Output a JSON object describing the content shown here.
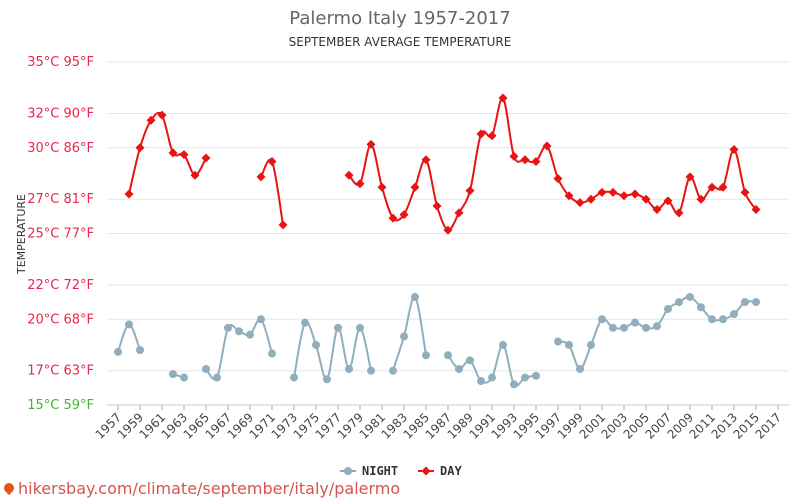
{
  "chart_data": {
    "type": "line",
    "title": "Palermo Italy 1957-2017",
    "subtitle": "SEPTEMBER AVERAGE TEMPERATURE",
    "ylabel": "TEMPERATURE",
    "ylim": [
      15,
      35
    ],
    "y_ticks": [
      {
        "value": 35,
        "label": "35°C 95°F",
        "color": "#e8264f"
      },
      {
        "value": 32,
        "label": "32°C 90°F",
        "color": "#e8264f"
      },
      {
        "value": 30,
        "label": "30°C 86°F",
        "color": "#e8264f"
      },
      {
        "value": 27,
        "label": "27°C 81°F",
        "color": "#e8264f"
      },
      {
        "value": 25,
        "label": "25°C 77°F",
        "color": "#e8264f"
      },
      {
        "value": 22,
        "label": "22°C 72°F",
        "color": "#e8264f"
      },
      {
        "value": 20,
        "label": "20°C 68°F",
        "color": "#e8264f"
      },
      {
        "value": 17,
        "label": "17°C 63°F",
        "color": "#e8264f"
      },
      {
        "value": 15,
        "label": "15°C 59°F",
        "color": "#4caf3c"
      }
    ],
    "x_tick_labels": [
      "1957",
      "1959",
      "1961",
      "1963",
      "1965",
      "1967",
      "1969",
      "1971",
      "1973",
      "1975",
      "1977",
      "1979",
      "1981",
      "1983",
      "1985",
      "1987",
      "1989",
      "1991",
      "1993",
      "1995",
      "1997",
      "1999",
      "2001",
      "2003",
      "2005",
      "2007",
      "2009",
      "2011",
      "2013",
      "2015",
      "2017"
    ],
    "grid": true,
    "legend_position": "bottom-center",
    "series": [
      {
        "name": "NIGHT",
        "color": "#90aebb",
        "marker": "circle",
        "points": [
          {
            "x": 1957,
            "y": 18.1
          },
          {
            "x": 1958,
            "y": 19.7
          },
          {
            "x": 1959,
            "y": 18.2
          },
          {
            "x": 1962,
            "y": 16.8
          },
          {
            "x": 1963,
            "y": 16.6
          },
          {
            "x": 1965,
            "y": 17.1
          },
          {
            "x": 1966,
            "y": 16.6
          },
          {
            "x": 1967,
            "y": 19.5
          },
          {
            "x": 1968,
            "y": 19.3
          },
          {
            "x": 1969,
            "y": 19.1
          },
          {
            "x": 1970,
            "y": 20.0
          },
          {
            "x": 1971,
            "y": 18.0
          },
          {
            "x": 1973,
            "y": 16.6
          },
          {
            "x": 1974,
            "y": 19.8
          },
          {
            "x": 1975,
            "y": 18.5
          },
          {
            "x": 1976,
            "y": 16.5
          },
          {
            "x": 1977,
            "y": 19.5
          },
          {
            "x": 1978,
            "y": 17.1
          },
          {
            "x": 1979,
            "y": 19.5
          },
          {
            "x": 1980,
            "y": 17.0
          },
          {
            "x": 1982,
            "y": 17.0
          },
          {
            "x": 1983,
            "y": 19.0
          },
          {
            "x": 1984,
            "y": 21.3
          },
          {
            "x": 1985,
            "y": 17.9
          },
          {
            "x": 1987,
            "y": 17.9
          },
          {
            "x": 1988,
            "y": 17.1
          },
          {
            "x": 1989,
            "y": 17.6
          },
          {
            "x": 1990,
            "y": 16.4
          },
          {
            "x": 1991,
            "y": 16.6
          },
          {
            "x": 1992,
            "y": 18.5
          },
          {
            "x": 1993,
            "y": 16.2
          },
          {
            "x": 1994,
            "y": 16.6
          },
          {
            "x": 1995,
            "y": 16.7
          },
          {
            "x": 1997,
            "y": 18.7
          },
          {
            "x": 1998,
            "y": 18.5
          },
          {
            "x": 1999,
            "y": 17.1
          },
          {
            "x": 2000,
            "y": 18.5
          },
          {
            "x": 2001,
            "y": 20.0
          },
          {
            "x": 2002,
            "y": 19.5
          },
          {
            "x": 2003,
            "y": 19.5
          },
          {
            "x": 2004,
            "y": 19.8
          },
          {
            "x": 2005,
            "y": 19.5
          },
          {
            "x": 2006,
            "y": 19.6
          },
          {
            "x": 2007,
            "y": 20.6
          },
          {
            "x": 2008,
            "y": 21.0
          },
          {
            "x": 2009,
            "y": 21.3
          },
          {
            "x": 2010,
            "y": 20.7
          },
          {
            "x": 2011,
            "y": 20.0
          },
          {
            "x": 2012,
            "y": 20.0
          },
          {
            "x": 2013,
            "y": 20.3
          },
          {
            "x": 2014,
            "y": 21.0
          },
          {
            "x": 2015,
            "y": 21.0
          }
        ]
      },
      {
        "name": "DAY",
        "color": "#e81313",
        "marker": "diamond",
        "points": [
          {
            "x": 1958,
            "y": 27.3
          },
          {
            "x": 1959,
            "y": 30.0
          },
          {
            "x": 1960,
            "y": 31.6
          },
          {
            "x": 1961,
            "y": 31.9
          },
          {
            "x": 1962,
            "y": 29.7
          },
          {
            "x": 1963,
            "y": 29.6
          },
          {
            "x": 1964,
            "y": 28.4
          },
          {
            "x": 1965,
            "y": 29.4
          },
          {
            "x": 1970,
            "y": 28.3
          },
          {
            "x": 1971,
            "y": 29.2
          },
          {
            "x": 1972,
            "y": 25.5
          },
          {
            "x": 1978,
            "y": 28.4
          },
          {
            "x": 1979,
            "y": 27.9
          },
          {
            "x": 1980,
            "y": 30.2
          },
          {
            "x": 1981,
            "y": 27.7
          },
          {
            "x": 1982,
            "y": 25.9
          },
          {
            "x": 1983,
            "y": 26.1
          },
          {
            "x": 1984,
            "y": 27.7
          },
          {
            "x": 1985,
            "y": 29.3
          },
          {
            "x": 1986,
            "y": 26.6
          },
          {
            "x": 1987,
            "y": 25.2
          },
          {
            "x": 1988,
            "y": 26.2
          },
          {
            "x": 1989,
            "y": 27.5
          },
          {
            "x": 1990,
            "y": 30.8
          },
          {
            "x": 1991,
            "y": 30.7
          },
          {
            "x": 1992,
            "y": 32.9
          },
          {
            "x": 1993,
            "y": 29.5
          },
          {
            "x": 1994,
            "y": 29.3
          },
          {
            "x": 1995,
            "y": 29.2
          },
          {
            "x": 1996,
            "y": 30.1
          },
          {
            "x": 1997,
            "y": 28.2
          },
          {
            "x": 1998,
            "y": 27.2
          },
          {
            "x": 1999,
            "y": 26.8
          },
          {
            "x": 2000,
            "y": 27.0
          },
          {
            "x": 2001,
            "y": 27.4
          },
          {
            "x": 2002,
            "y": 27.4
          },
          {
            "x": 2003,
            "y": 27.2
          },
          {
            "x": 2004,
            "y": 27.3
          },
          {
            "x": 2005,
            "y": 27.0
          },
          {
            "x": 2006,
            "y": 26.4
          },
          {
            "x": 2007,
            "y": 26.9
          },
          {
            "x": 2008,
            "y": 26.2
          },
          {
            "x": 2009,
            "y": 28.3
          },
          {
            "x": 2010,
            "y": 27.0
          },
          {
            "x": 2011,
            "y": 27.7
          },
          {
            "x": 2012,
            "y": 27.7
          },
          {
            "x": 2013,
            "y": 29.9
          },
          {
            "x": 2014,
            "y": 27.4
          },
          {
            "x": 2015,
            "y": 26.4
          }
        ]
      }
    ]
  },
  "credit": {
    "text": "hikersbay.com/climate/september/italy/palermo"
  }
}
